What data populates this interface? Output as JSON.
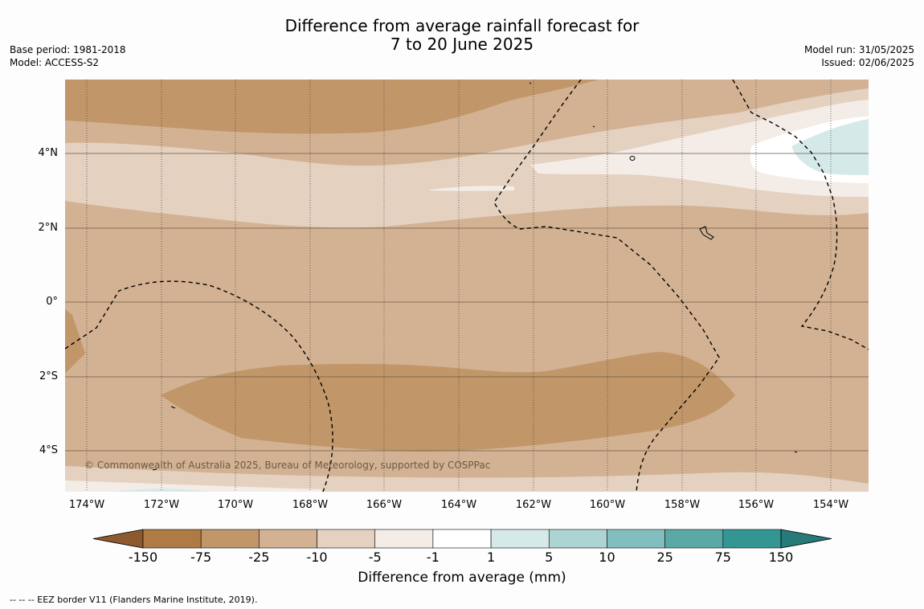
{
  "title": {
    "line1": "Difference from average rainfall forecast for",
    "line2": "7 to 20 June 2025"
  },
  "meta_left": {
    "base_period": "Base period: 1981-2018",
    "model": "Model: ACCESS-S2"
  },
  "meta_right": {
    "model_run": "Model run: 31/05/2025",
    "issued": "Issued: 02/06/2025"
  },
  "map": {
    "latitude_labels": [
      "4°N",
      "2°N",
      "0°",
      "2°S",
      "4°S"
    ],
    "longitude_labels": [
      "174°W",
      "172°W",
      "170°W",
      "168°W",
      "166°W",
      "164°W",
      "162°W",
      "160°W",
      "158°W",
      "156°W",
      "154°W"
    ],
    "copyright": "© Commonwealth of Australia 2025, Bureau of Meteorology, supported by COSPPac"
  },
  "colorbar": {
    "ticks": [
      "-150",
      "-75",
      "-25",
      "-10",
      "-5",
      "-1",
      "1",
      "5",
      "10",
      "25",
      "75",
      "150"
    ],
    "colors": [
      "#8c5a2e",
      "#b07a45",
      "#c19669",
      "#d2b293",
      "#e4d1c0",
      "#f4ece6",
      "#ffffff",
      "#d5e9e8",
      "#abd4d2",
      "#80bfbd",
      "#5aa9a7",
      "#339693",
      "#267a78"
    ],
    "title": "Difference from average (mm)"
  },
  "footnote": "-- -- -- EEZ border V11 (Flanders Marine Institute, 2019)."
}
